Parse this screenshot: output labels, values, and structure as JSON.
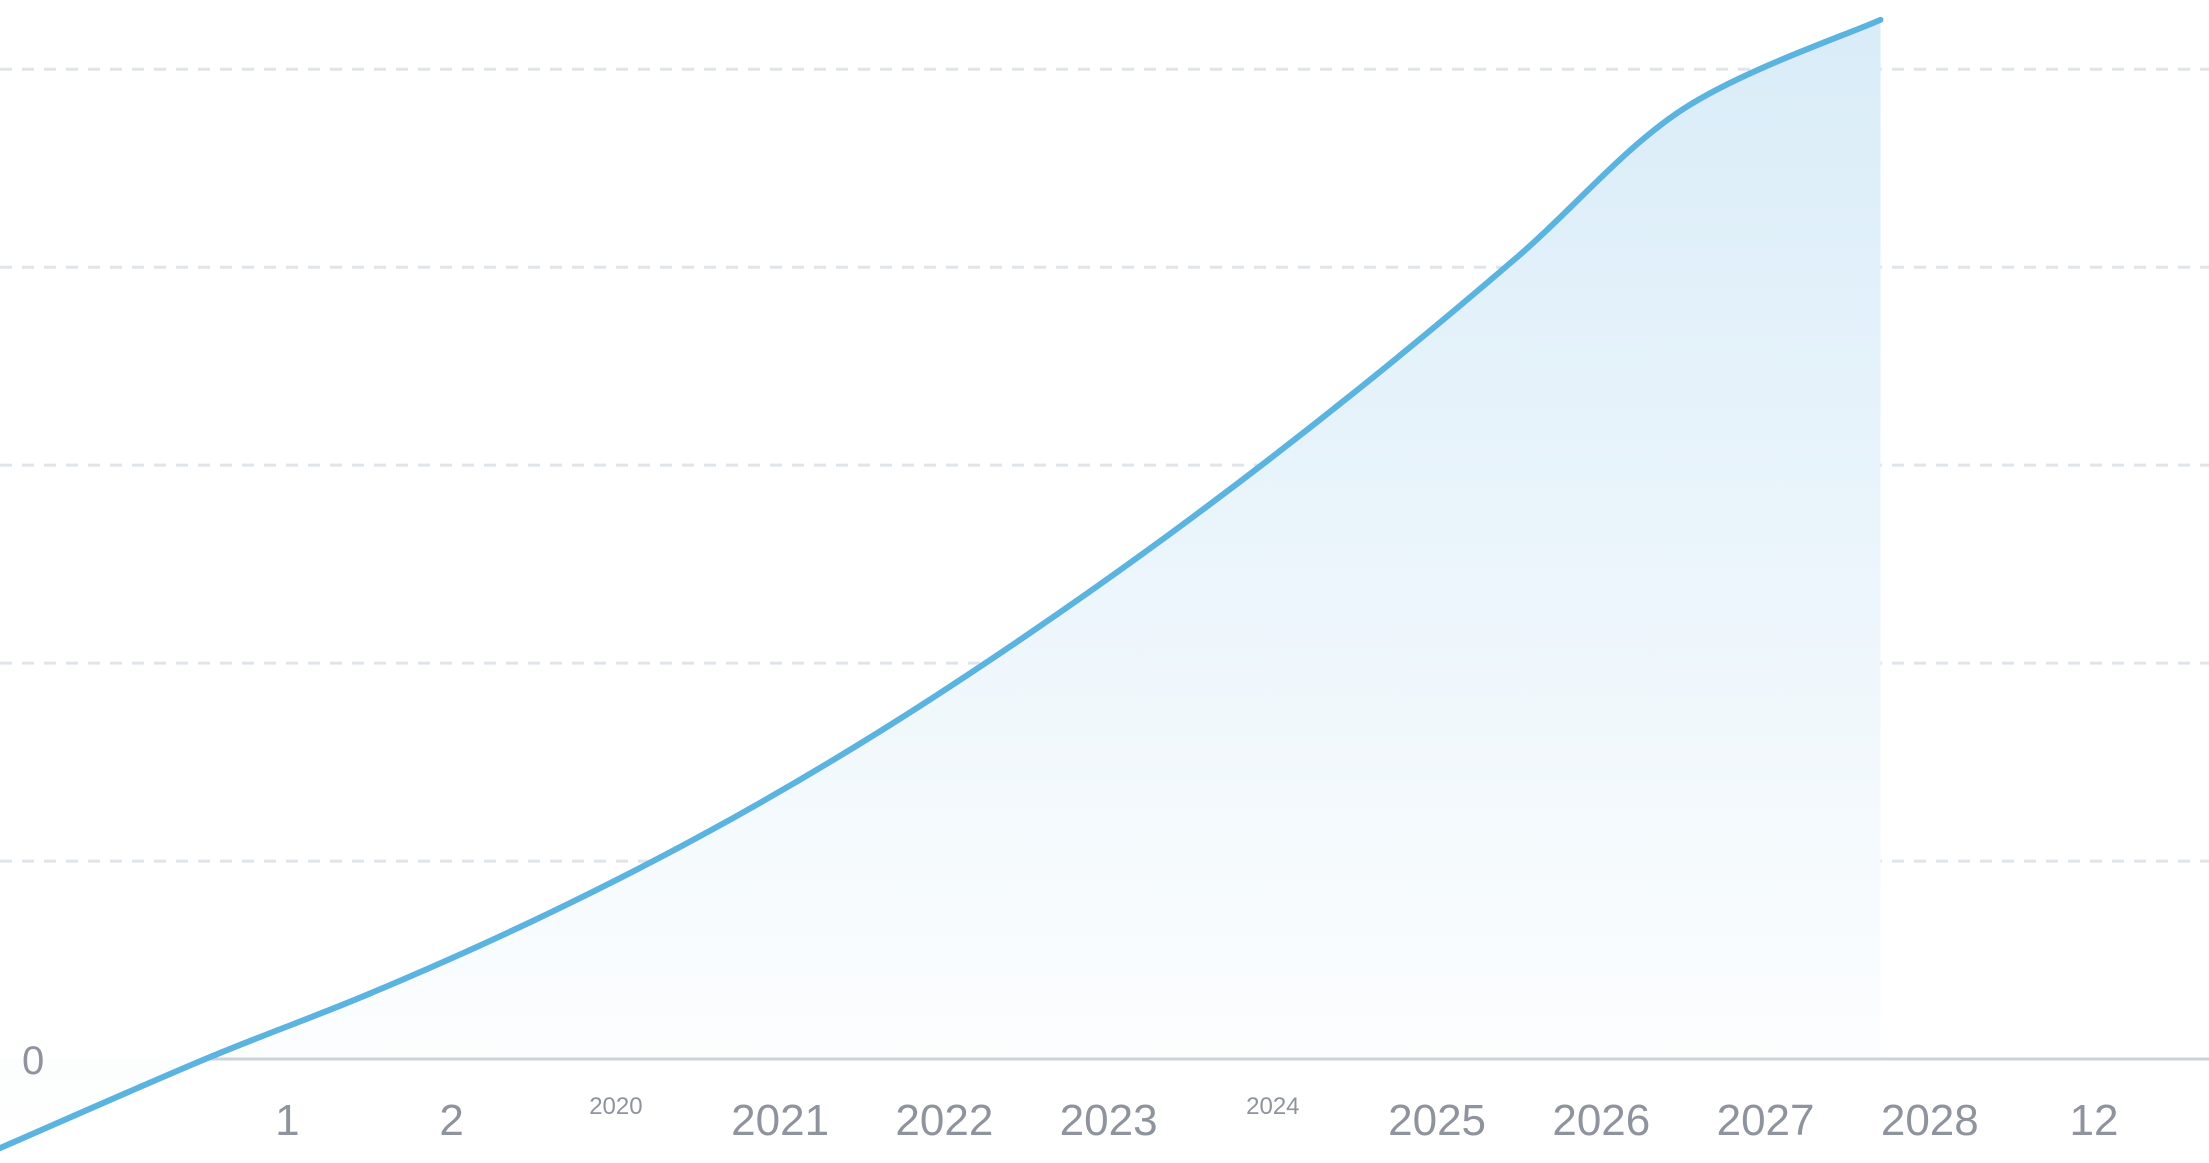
{
  "colors": {
    "line": "#5BB3E0",
    "area_top": "#D9ECF8",
    "area_bottom": "#FFFFFF",
    "grid": "#E1E5EA",
    "baseline": "#CDD1D8",
    "tick_text": "#8E939D"
  },
  "chart_data": {
    "type": "area",
    "title": "",
    "xlabel": "",
    "ylabel": "",
    "grid": true,
    "legend": "none",
    "y_tick_labels": [
      "0"
    ],
    "x_tick_labels": [
      "1",
      "2",
      "2020",
      "2021",
      "2022",
      "2023",
      "2024",
      "2025",
      "2026",
      "2027",
      "2028",
      "12"
    ],
    "xlim": [
      -1.75,
      11.7
    ],
    "ylim": [
      -0.5,
      5.35
    ],
    "gridlines_y": [
      1,
      2,
      3,
      4,
      5
    ],
    "series": [
      {
        "x": [
          -1.75,
          -0.5,
          0.5,
          1.5,
          2.5,
          3.5,
          4.5,
          5.5,
          6.5,
          7.5,
          8.5,
          9.7
        ],
        "values": [
          -0.45,
          0.0,
          0.33,
          0.7,
          1.12,
          1.6,
          2.14,
          2.73,
          3.37,
          4.06,
          4.8,
          5.25
        ]
      }
    ]
  }
}
